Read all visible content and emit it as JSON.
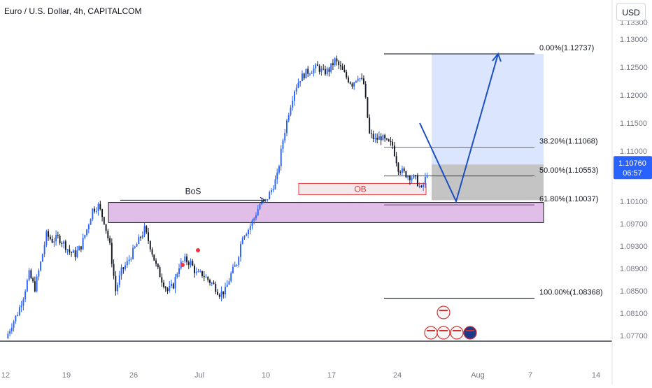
{
  "header": {
    "title": "Euro / U.S. Dollar, 4h, CAPITALCOM",
    "currency": "USD"
  },
  "colors": {
    "up": "#2962ff",
    "down": "#131722",
    "price_badge": "#2962ff",
    "zone_fill": "#e1bee7",
    "ob_border": "#e53935",
    "target_fill": "#dbe6fe",
    "risk_fill": "#c4c4c4",
    "arrow": "#1c4fbf",
    "marker": "#f23645"
  },
  "chart_data": {
    "type": "candlestick",
    "title": "Euro / U.S. Dollar, 4h, CAPITALCOM",
    "ylim": [
      1.076,
      1.1345
    ],
    "price_ticks": [
      "1.13300",
      "1.13000",
      "1.12500",
      "1.12000",
      "1.11500",
      "1.11000",
      "1.10100",
      "1.09700",
      "1.09300",
      "1.08900",
      "1.08500",
      "1.08100",
      "1.07700"
    ],
    "time_ticks": [
      "12",
      "19",
      "26",
      "Jul",
      "10",
      "17",
      "24",
      "Aug",
      "7",
      "14"
    ],
    "price_path": [
      1.0765,
      1.079,
      1.081,
      1.084,
      1.088,
      1.0855,
      1.09,
      1.095,
      1.094,
      1.0945,
      1.0935,
      1.092,
      1.0915,
      1.093,
      1.096,
      1.0995,
      1.1002,
      1.0975,
      1.093,
      1.085,
      1.0885,
      1.09,
      1.092,
      1.094,
      1.096,
      1.093,
      1.0895,
      1.087,
      1.085,
      1.086,
      1.0895,
      1.0905,
      1.09,
      1.088,
      1.088,
      1.087,
      1.086,
      1.0845,
      1.085,
      1.088,
      1.09,
      1.095,
      1.096,
      1.098,
      1.1005,
      1.101,
      1.103,
      1.1055,
      1.112,
      1.117,
      1.121,
      1.123,
      1.124,
      1.1245,
      1.125,
      1.124,
      1.1245,
      1.1262,
      1.1248,
      1.1232,
      1.122,
      1.1235,
      1.122,
      1.113,
      1.112,
      1.1125,
      1.1115,
      1.111,
      1.107,
      1.106,
      1.1055,
      1.105,
      1.103,
      1.106
    ],
    "last_price": "1.10760",
    "countdown": "06:57",
    "fib_levels": [
      {
        "label": "0.00%(1.12737)",
        "price": 1.12737
      },
      {
        "label": "38.20%(1.11068)",
        "price": 1.11068
      },
      {
        "label": "50.00%(1.10553)",
        "price": 1.10553
      },
      {
        "label": "61.80%(1.10037)",
        "price": 1.10037
      },
      {
        "label": "100.00%(1.08368)",
        "price": 1.08368
      }
    ],
    "zones": {
      "demand": {
        "top": 1.1008,
        "bottom": 1.0972
      },
      "ob": {
        "top": 1.1042,
        "bottom": 1.1022,
        "label": "OB"
      },
      "target": {
        "top": 1.12737,
        "bottom": 1.1076
      },
      "risk": {
        "top": 1.1076,
        "bottom": 1.1012
      }
    },
    "bos_label": "BoS",
    "bos_price": 1.1012,
    "projection": [
      1.115,
      1.101,
      1.12737
    ]
  }
}
